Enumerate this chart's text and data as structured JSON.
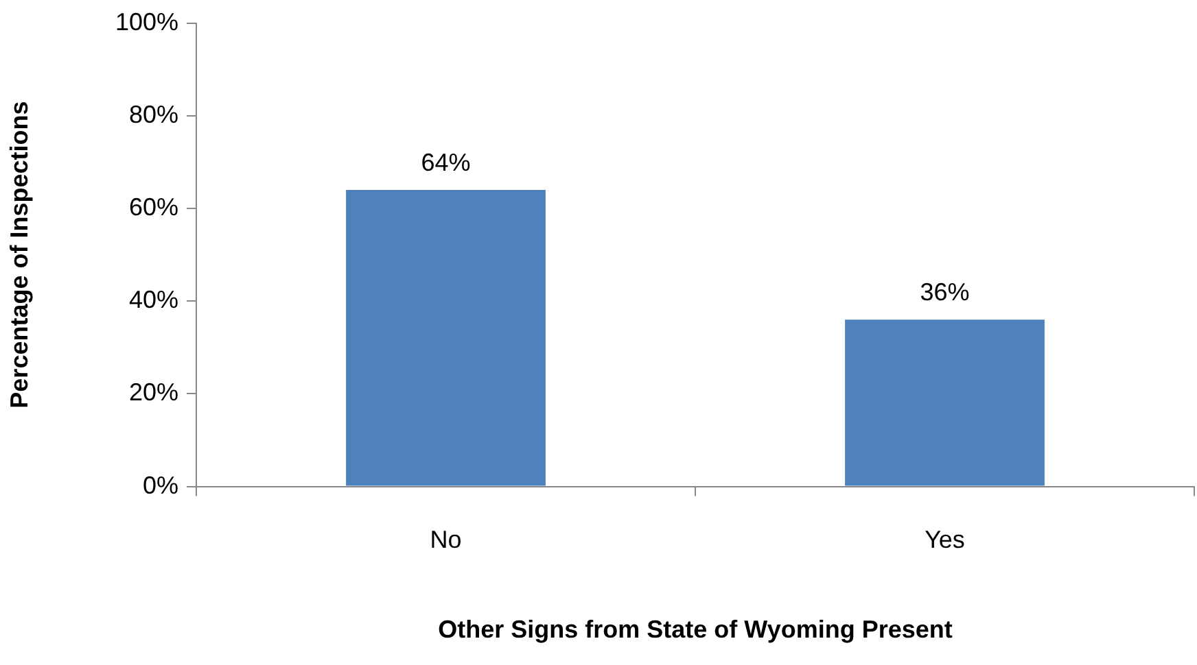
{
  "chart_data": {
    "type": "bar",
    "xlabel": "Other Signs from State of Wyoming Present",
    "ylabel": "Percentage of Inspections",
    "categories": [
      "No",
      "Yes"
    ],
    "values": [
      64,
      36
    ],
    "value_labels": [
      "64%",
      "36%"
    ],
    "color": "#4f81bd",
    "ylim": [
      0,
      100
    ],
    "yticks": [
      {
        "value": 0,
        "label": "0%"
      },
      {
        "value": 20,
        "label": "20%"
      },
      {
        "value": 40,
        "label": "40%"
      },
      {
        "value": 60,
        "label": "60%"
      },
      {
        "value": 80,
        "label": "80%"
      },
      {
        "value": 100,
        "label": "100%"
      }
    ],
    "grid": false,
    "legend": false
  }
}
